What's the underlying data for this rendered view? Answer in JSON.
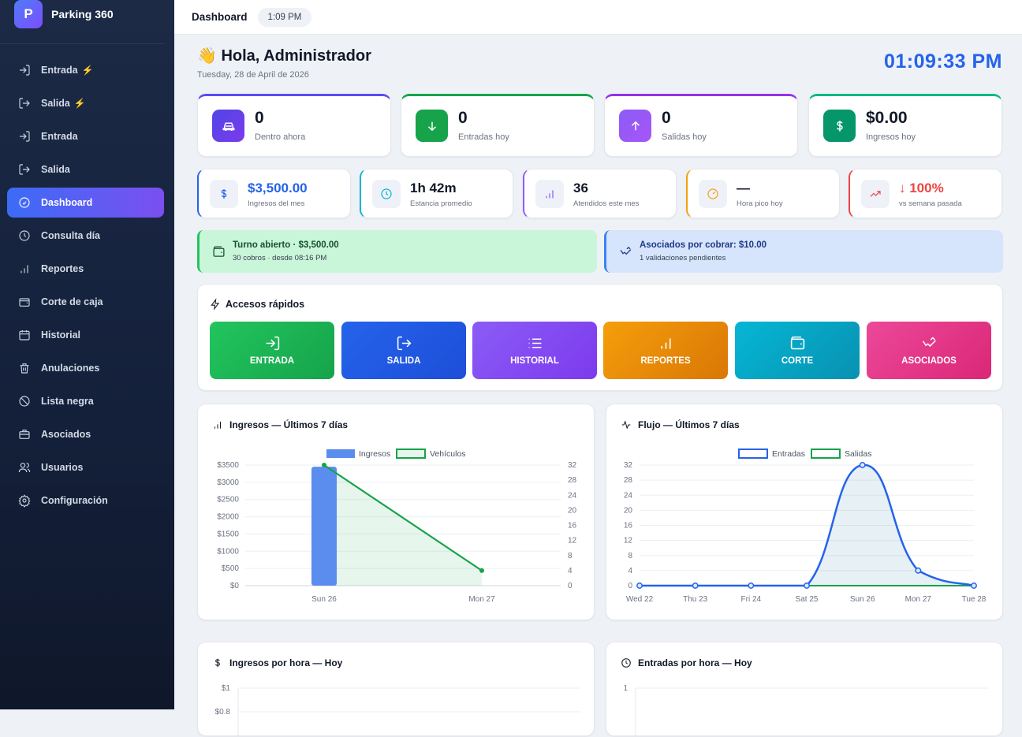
{
  "app": {
    "name": "Parking 360",
    "logo_letter": "P"
  },
  "sidebar": {
    "items": [
      {
        "label": "Entrada",
        "icon": "login-icon",
        "bolt": "⚡"
      },
      {
        "label": "Salida",
        "icon": "logout-icon",
        "bolt": "⚡"
      },
      {
        "label": "Entrada",
        "icon": "login-icon"
      },
      {
        "label": "Salida",
        "icon": "logout-icon"
      },
      {
        "label": "Dashboard",
        "icon": "dashboard-icon",
        "active": true
      },
      {
        "label": "Consulta día",
        "icon": "clock-icon"
      },
      {
        "label": "Reportes",
        "icon": "bar-chart-icon"
      },
      {
        "label": "Corte de caja",
        "icon": "wallet-icon"
      },
      {
        "label": "Historial",
        "icon": "calendar-icon"
      },
      {
        "label": "Anulaciones",
        "icon": "trash-icon"
      },
      {
        "label": "Lista negra",
        "icon": "ban-icon"
      },
      {
        "label": "Asociados",
        "icon": "briefcase-icon"
      },
      {
        "label": "Usuarios",
        "icon": "users-icon"
      },
      {
        "label": "Configuración",
        "icon": "gear-icon"
      }
    ]
  },
  "topbar": {
    "title": "Dashboard",
    "time": "1:09 PM"
  },
  "header": {
    "emoji": "👋",
    "greeting": "Hola, Administrador",
    "date": "Tuesday, 28 de April de 2026",
    "clock": "01:09:33 PM"
  },
  "stats": [
    {
      "value": "0",
      "label": "Dentro ahora",
      "icon": "car-icon",
      "color": "#5b4cf0"
    },
    {
      "value": "0",
      "label": "Entradas hoy",
      "icon": "arrow-down-icon",
      "color": "#16a34a"
    },
    {
      "value": "0",
      "label": "Salidas hoy",
      "icon": "arrow-up-icon",
      "color": "#9333ea"
    },
    {
      "value": "$0.00",
      "label": "Ingresos hoy",
      "icon": "dollar-icon",
      "color": "#059669"
    }
  ],
  "metrics": [
    {
      "value": "$3,500.00",
      "label": "Ingresos del mes",
      "icon": "dollar-icon",
      "color": "#2563eb"
    },
    {
      "value": "1h 42m",
      "label": "Estancia promedio",
      "icon": "clock-icon",
      "color": "#06b6d4"
    },
    {
      "value": "36",
      "label": "Atendidos este mes",
      "icon": "bar-chart-icon",
      "color": "#8b5cf6"
    },
    {
      "value": "—",
      "label": "Hora pico hoy",
      "icon": "gauge-icon",
      "color": "#f59e0b"
    },
    {
      "value": "↓ 100%",
      "label": "vs semana pasada",
      "icon": "trend-icon",
      "color": "#ef4444"
    }
  ],
  "banners": {
    "turno": {
      "title": "Turno abierto · $3,500.00",
      "sub": "30 cobros · desde 08:16 PM"
    },
    "asociados": {
      "title": "Asociados por cobrar: $10.00",
      "sub": "1 validaciones pendientes"
    }
  },
  "quick": {
    "title": "Accesos rápidos",
    "buttons": [
      {
        "label": "ENTRADA",
        "icon": "login-icon"
      },
      {
        "label": "SALIDA",
        "icon": "logout-icon"
      },
      {
        "label": "HISTORIAL",
        "icon": "list-icon"
      },
      {
        "label": "REPORTES",
        "icon": "bar-chart-icon"
      },
      {
        "label": "CORTE",
        "icon": "wallet-icon"
      },
      {
        "label": "ASOCIADOS",
        "icon": "handshake-icon"
      }
    ]
  },
  "charts": {
    "ingresos_title": "Ingresos — Últimos 7 días",
    "flujo_title": "Flujo — Últimos 7 días",
    "hora_title": "Ingresos por hora — Hoy",
    "entradas_hora_title": "Entradas por hora — Hoy"
  },
  "chart_data": [
    {
      "type": "bar",
      "title": "Ingresos — Últimos 7 días",
      "categories": [
        "Sun 26",
        "Mon 27"
      ],
      "series": [
        {
          "name": "Ingresos",
          "type": "bar",
          "axis": "left",
          "values": [
            3450,
            0
          ],
          "color": "#5b8def"
        },
        {
          "name": "Vehículos",
          "type": "line",
          "axis": "right",
          "values": [
            32,
            4
          ],
          "color": "#16a34a"
        }
      ],
      "y_left": {
        "min": 0,
        "max": 3500,
        "ticks": [
          "$0",
          "$500",
          "$1000",
          "$1500",
          "$2000",
          "$2500",
          "$3000",
          "$3500"
        ]
      },
      "y_right": {
        "min": 0,
        "max": 32,
        "ticks": [
          "0",
          "4",
          "8",
          "12",
          "16",
          "20",
          "24",
          "28",
          "32"
        ]
      },
      "legend": "top"
    },
    {
      "type": "line",
      "title": "Flujo — Últimos 7 días",
      "categories": [
        "Wed 22",
        "Thu 23",
        "Fri 24",
        "Sat 25",
        "Sun 26",
        "Mon 27",
        "Tue 28"
      ],
      "series": [
        {
          "name": "Entradas",
          "values": [
            0,
            0,
            0,
            0,
            32,
            4,
            0
          ],
          "color": "#2563eb"
        },
        {
          "name": "Salidas",
          "values": [
            0,
            0,
            0,
            0,
            0,
            0,
            0
          ],
          "color": "#16a34a"
        }
      ],
      "y": {
        "min": 0,
        "max": 32,
        "ticks": [
          "0",
          "4",
          "8",
          "12",
          "16",
          "20",
          "24",
          "28",
          "32"
        ]
      },
      "legend": "top"
    },
    {
      "type": "bar",
      "title": "Ingresos por hora — Hoy",
      "y": {
        "ticks": [
          "$1",
          "$0.8"
        ]
      }
    },
    {
      "type": "bar",
      "title": "Entradas por hora — Hoy",
      "y": {
        "ticks": [
          "1"
        ]
      }
    }
  ]
}
